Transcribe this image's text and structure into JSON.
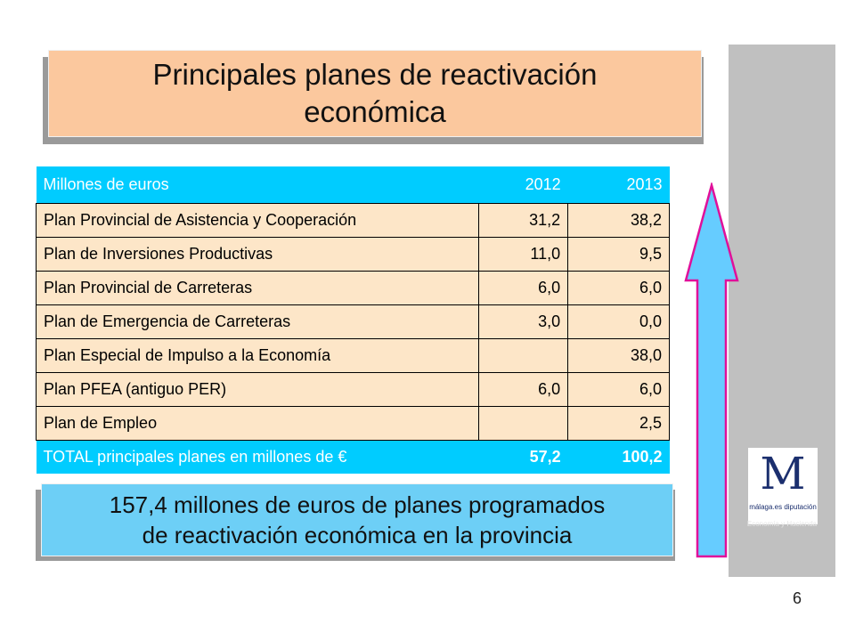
{
  "title": {
    "line1": "Principales planes de reactivación",
    "line2": "económica"
  },
  "table": {
    "header": {
      "label": "Millones de euros",
      "y2012": "2012",
      "y2013": "2013"
    },
    "rows": [
      {
        "label": "Plan Provincial de Asistencia y Cooperación",
        "y2012": "31,2",
        "y2013": "38,2"
      },
      {
        "label": "Plan de Inversiones Productivas",
        "y2012": "11,0",
        "y2013": "9,5"
      },
      {
        "label": "Plan Provincial de Carreteras",
        "y2012": "6,0",
        "y2013": "6,0"
      },
      {
        "label": "Plan de Emergencia de Carreteras",
        "y2012": "3,0",
        "y2013": "0,0"
      },
      {
        "label": "Plan Especial de Impulso a la Economía",
        "y2012": "",
        "y2013": "38,0"
      },
      {
        "label": "Plan PFEA (antiguo PER)",
        "y2012": "6,0",
        "y2013": "6,0"
      },
      {
        "label": "Plan de Empleo",
        "y2012": "",
        "y2013": "2,5"
      }
    ],
    "total": {
      "label": "TOTAL principales planes en millones de €",
      "y2012": "57,2",
      "y2013": "100,2"
    }
  },
  "summary": {
    "line1": "157,4 millones de euros de planes programados",
    "line2": "de reactivación económica en la provincia"
  },
  "logo": {
    "letter": "M",
    "name": "málaga.es diputación",
    "department": "Economía y Hacienda"
  },
  "page_number": "6",
  "colors": {
    "title_bg": "#fbc89e",
    "table_header_bg": "#00ccff",
    "table_row_bg": "#fde6c8",
    "summary_bg": "#6dcff6",
    "arrow_fill": "#66ccff",
    "arrow_stroke": "#e0109a",
    "side_panel": "#c0c0c0"
  }
}
